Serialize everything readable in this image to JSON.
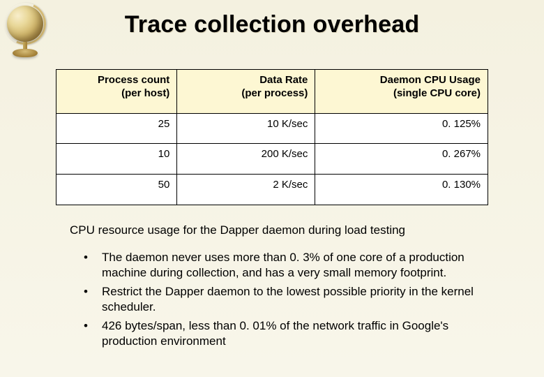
{
  "title": "Trace collection overhead",
  "table": {
    "header_bg": "#fdf7d3",
    "cell_bg": "#ffffff",
    "border_color": "#000000",
    "columns": [
      {
        "line1": "Process count",
        "line2": "(per host)"
      },
      {
        "line1": "Data Rate",
        "line2": "(per process)"
      },
      {
        "line1": "Daemon CPU Usage",
        "line2": "(single CPU core)"
      }
    ],
    "rows": [
      [
        "25",
        "10 K/sec",
        "0. 125%"
      ],
      [
        "10",
        "200 K/sec",
        "0. 267%"
      ],
      [
        "50",
        "2 K/sec",
        "0. 130%"
      ]
    ]
  },
  "caption": "CPU resource usage for the Dapper daemon during load testing",
  "bullets": [
    "The daemon never uses more than 0. 3% of one core of a production machine during collection, and has a very small memory footprint.",
    "Restrict the Dapper daemon to the lowest possible priority in the kernel scheduler.",
    "426 bytes/span, less than 0. 01% of the network traffic in Google's production environment"
  ]
}
